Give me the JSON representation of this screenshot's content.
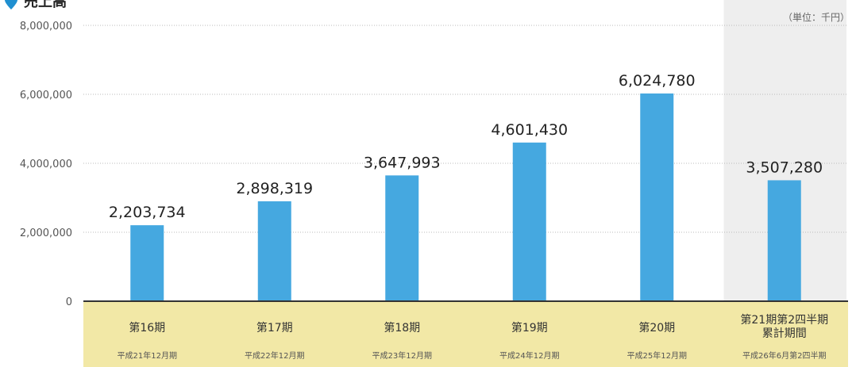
{
  "header": {
    "title_fragment": "売上高",
    "unit": "（単位：千円）"
  },
  "colors": {
    "bar": "#45a8e0",
    "category_band": "#f2e8a6",
    "highlight_column": "#eeeeee",
    "axis": "#333333",
    "grid": "#bbbbbb",
    "title_marker": "#1f8fd0"
  },
  "chart_data": {
    "type": "bar",
    "categories": [
      "第16期",
      "第17期",
      "第18期",
      "第19期",
      "第20期",
      "第21期第2四半期累計期間"
    ],
    "category_labels": [
      {
        "main": [
          "第16期"
        ],
        "sub": "平成21年12月期"
      },
      {
        "main": [
          "第17期"
        ],
        "sub": "平成22年12月期"
      },
      {
        "main": [
          "第18期"
        ],
        "sub": "平成23年12月期"
      },
      {
        "main": [
          "第19期"
        ],
        "sub": "平成24年12月期"
      },
      {
        "main": [
          "第20期"
        ],
        "sub": "平成25年12月期"
      },
      {
        "main": [
          "第21期第2四半期",
          "累計期間"
        ],
        "sub": "平成26年6月第2四半期"
      }
    ],
    "values": [
      2203734,
      2898319,
      3647993,
      4601430,
      6024780,
      3507280
    ],
    "value_labels": [
      "2,203,734",
      "2,898,319",
      "3,647,993",
      "4,601,430",
      "6,024,780",
      "3,507,280"
    ],
    "highlighted_category_index": 5,
    "ylim": [
      0,
      8000000
    ],
    "yticks": [
      0,
      2000000,
      4000000,
      6000000,
      8000000
    ],
    "ytick_labels": [
      "0",
      "2,000,000",
      "4,000,000",
      "6,000,000",
      "8,000,000"
    ],
    "grid": true,
    "legend": "none"
  }
}
